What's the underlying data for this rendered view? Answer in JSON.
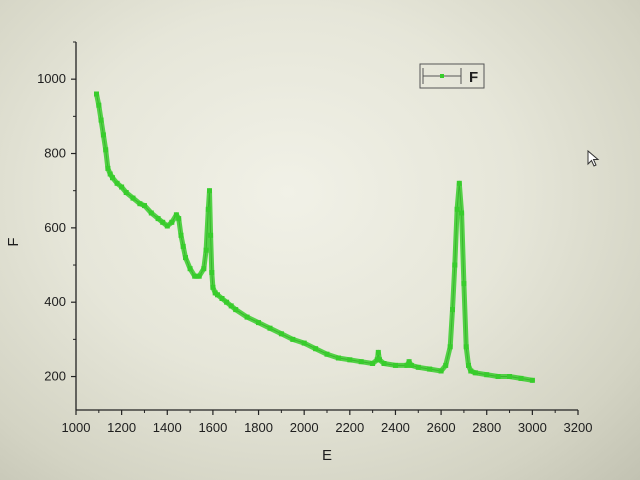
{
  "chart_data": {
    "type": "line",
    "title": "",
    "xlabel": "E",
    "ylabel": "F",
    "xlim": [
      1000,
      3200
    ],
    "ylim": [
      110,
      1100
    ],
    "x_ticks": [
      1000,
      1200,
      1400,
      1600,
      1800,
      2000,
      2200,
      2400,
      2600,
      2800,
      3000,
      3200
    ],
    "y_ticks": [
      200,
      400,
      600,
      800,
      1000
    ],
    "grid": false,
    "legend": {
      "position": "top-right"
    },
    "series": [
      {
        "name": "F",
        "color": "#38cc2c",
        "marker": "square",
        "x": [
          1090,
          1100,
          1110,
          1120,
          1130,
          1140,
          1150,
          1160,
          1180,
          1200,
          1220,
          1250,
          1280,
          1300,
          1330,
          1360,
          1380,
          1400,
          1420,
          1440,
          1450,
          1460,
          1470,
          1480,
          1500,
          1520,
          1540,
          1560,
          1570,
          1580,
          1585,
          1590,
          1595,
          1600,
          1610,
          1620,
          1640,
          1660,
          1680,
          1700,
          1750,
          1800,
          1850,
          1900,
          1950,
          2000,
          2050,
          2100,
          2150,
          2200,
          2250,
          2300,
          2320,
          2325,
          2330,
          2350,
          2400,
          2450,
          2460,
          2470,
          2500,
          2550,
          2600,
          2620,
          2640,
          2650,
          2660,
          2670,
          2680,
          2690,
          2700,
          2710,
          2720,
          2730,
          2750,
          2800,
          2850,
          2900,
          2950,
          3000
        ],
        "y": [
          960,
          930,
          890,
          850,
          810,
          760,
          745,
          735,
          720,
          710,
          695,
          680,
          665,
          660,
          640,
          625,
          615,
          605,
          615,
          635,
          625,
          580,
          550,
          520,
          490,
          470,
          470,
          490,
          540,
          650,
          700,
          580,
          480,
          440,
          425,
          420,
          410,
          400,
          390,
          380,
          360,
          345,
          330,
          315,
          300,
          290,
          275,
          260,
          250,
          245,
          240,
          235,
          245,
          265,
          245,
          235,
          230,
          230,
          240,
          230,
          225,
          220,
          215,
          230,
          280,
          380,
          500,
          650,
          720,
          640,
          450,
          280,
          230,
          215,
          210,
          205,
          200,
          200,
          195,
          190
        ]
      }
    ]
  }
}
